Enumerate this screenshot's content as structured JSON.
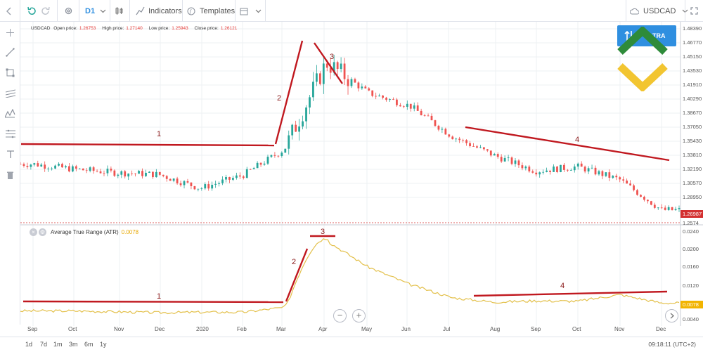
{
  "toolbar": {
    "timeframe": "D1",
    "indicators_label": "Indicators",
    "templates_label": "Templates",
    "symbol": "USDCAD"
  },
  "legend": {
    "symbol": "USDCAD",
    "open_label": "Open price:",
    "open_value": "1.26753",
    "high_label": "High price:",
    "high_value": "1.27140",
    "low_label": "Low price:",
    "low_value": "1.25943",
    "close_label": "Close price:",
    "close_value": "1.26121"
  },
  "trade_button": {
    "label": "TRA"
  },
  "indicator": {
    "name": "Average True Range (ATR)",
    "value": "0.0078"
  },
  "price_axis": [
    "1.48390",
    "1.46770",
    "1.45150",
    "1.43530",
    "1.41910",
    "1.40290",
    "1.38670",
    "1.37050",
    "1.35430",
    "1.33810",
    "1.32190",
    "1.30570",
    "1.28950"
  ],
  "current_price_tag": "1.26987",
  "cut_price_label": "1.2574",
  "atr_axis": [
    "0.0240",
    "0.0200",
    "0.0160",
    "0.0120",
    "0.0040"
  ],
  "atr_current_tag": "0.0078",
  "time_axis": [
    "Sep",
    "Oct",
    "Nov",
    "Dec",
    "2020",
    "Feb",
    "Mar",
    "Apr",
    "May",
    "Jun",
    "Jul",
    "Aug",
    "Sep",
    "Oct",
    "Nov",
    "Dec"
  ],
  "timeframes": [
    "1d",
    "7d",
    "1m",
    "3m",
    "6m",
    "1y"
  ],
  "clock": "09:18:11 (UTC+2)",
  "annotations": {
    "price": [
      "1",
      "2",
      "3",
      "4"
    ],
    "atr": [
      "1",
      "2",
      "3",
      "4"
    ]
  },
  "colors": {
    "bull": "#26a69a",
    "bear": "#ef5350",
    "trend_line": "#c0181f",
    "atr_line": "#e3c04a",
    "accent": "#2f8fe0"
  },
  "chart_data": [
    {
      "type": "candlestick",
      "symbol": "USDCAD",
      "timeframe": "D1",
      "x": [
        "Sep",
        "Oct",
        "Nov",
        "Dec",
        "2020",
        "Feb",
        "Mar",
        "Apr",
        "May",
        "Jun",
        "Jul",
        "Aug",
        "Sep",
        "Oct",
        "Nov",
        "Dec"
      ],
      "close_by_month": [
        1.328,
        1.322,
        1.318,
        1.316,
        1.3,
        1.315,
        1.345,
        1.445,
        1.41,
        1.395,
        1.36,
        1.338,
        1.32,
        1.325,
        1.31,
        1.275
      ],
      "ylim": [
        1.257,
        1.484
      ],
      "last_price": 1.26987
    },
    {
      "type": "line",
      "name": "Average True Range (ATR)",
      "x": [
        "Sep",
        "Oct",
        "Nov",
        "Dec",
        "2020",
        "Feb",
        "Mar",
        "Apr",
        "May",
        "Jun",
        "Jul",
        "Aug",
        "Sep",
        "Oct",
        "Nov",
        "Dec"
      ],
      "values": [
        0.006,
        0.006,
        0.0058,
        0.0056,
        0.0057,
        0.0057,
        0.0068,
        0.022,
        0.016,
        0.012,
        0.009,
        0.008,
        0.0083,
        0.0082,
        0.0097,
        0.0078
      ],
      "ylim": [
        0.0,
        0.0245
      ]
    }
  ]
}
